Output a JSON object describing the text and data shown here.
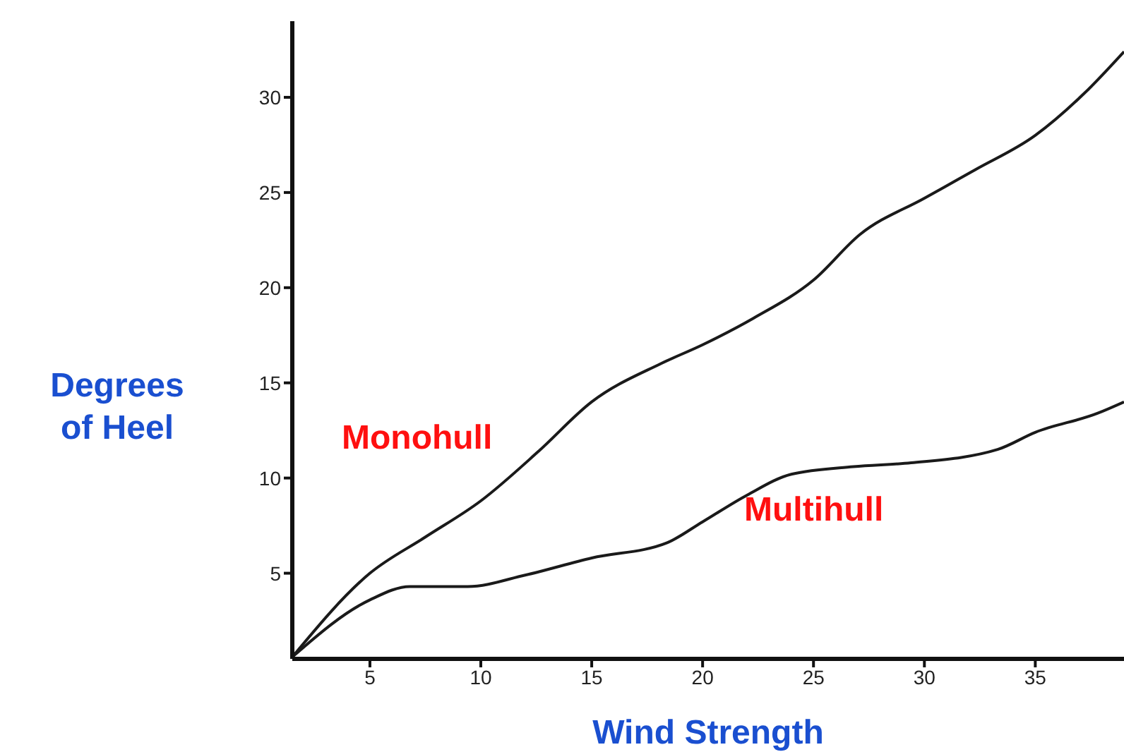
{
  "chart_data": {
    "type": "line",
    "xlabel": "Wind Strength",
    "ylabel": "Degrees of Heel",
    "xlim": [
      1.5,
      39
    ],
    "xticks": [
      5,
      10,
      15,
      20,
      25,
      30,
      35
    ],
    "ylim": [
      0.5,
      34
    ],
    "yticks": [
      5,
      10,
      15,
      20,
      25,
      30
    ],
    "grid": false,
    "legend": false,
    "marker": "none",
    "line_style": "solid",
    "series": [
      {
        "name": "Monohull",
        "color": "#1a1a1a",
        "x": [
          1.5,
          5,
          7.5,
          10,
          12.6,
          15,
          18.1,
          20,
          22.3,
          25,
          27.1,
          30,
          32.3,
          35,
          37.2,
          39
        ],
        "values": [
          0.6,
          5,
          6.9,
          8.8,
          11.4,
          14,
          16,
          17,
          18.4,
          20.4,
          22.8,
          24.7,
          26.2,
          28,
          30.2,
          32.4
        ]
      },
      {
        "name": "Multihull",
        "color": "#1a1a1a",
        "x": [
          1.5,
          5,
          6.8,
          9.4,
          12,
          15,
          18.4,
          20,
          22,
          24,
          26.8,
          29.4,
          33.3,
          35,
          37.8,
          39
        ],
        "values": [
          0.6,
          3.6,
          4.3,
          4.3,
          4.9,
          5.8,
          6.6,
          7.7,
          9.1,
          10.2,
          10.6,
          10.8,
          11.5,
          12.4,
          13.4,
          14
        ]
      }
    ]
  }
}
